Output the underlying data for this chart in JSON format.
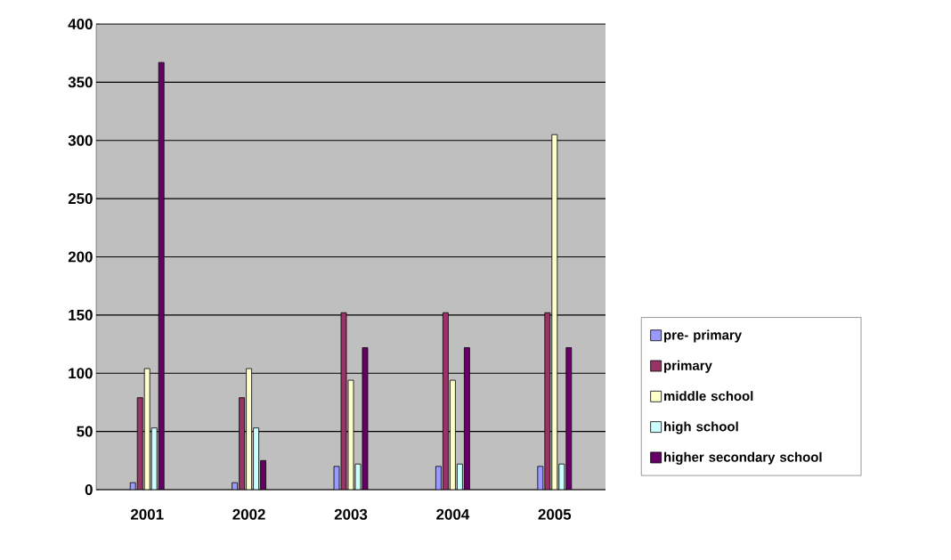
{
  "chart_data": {
    "type": "bar",
    "categories": [
      "2001",
      "2002",
      "2003",
      "2004",
      "2005"
    ],
    "series": [
      {
        "name": "pre- primary",
        "color": "#9999ff",
        "values": [
          6,
          6,
          20,
          20,
          20
        ]
      },
      {
        "name": "primary",
        "color": "#993366",
        "values": [
          79,
          79,
          152,
          152,
          152
        ]
      },
      {
        "name": "middle school",
        "color": "#ffffcc",
        "values": [
          104,
          104,
          94,
          94,
          305
        ]
      },
      {
        "name": "high school",
        "color": "#ccffff",
        "values": [
          53,
          53,
          22,
          22,
          22
        ]
      },
      {
        "name": "higher secondary school",
        "color": "#660066",
        "values": [
          367,
          25,
          122,
          122,
          122
        ]
      }
    ],
    "ylim": [
      0,
      400
    ],
    "yticks": [
      0,
      50,
      100,
      150,
      200,
      250,
      300,
      350,
      400
    ],
    "grid": "y",
    "legend": "right"
  }
}
